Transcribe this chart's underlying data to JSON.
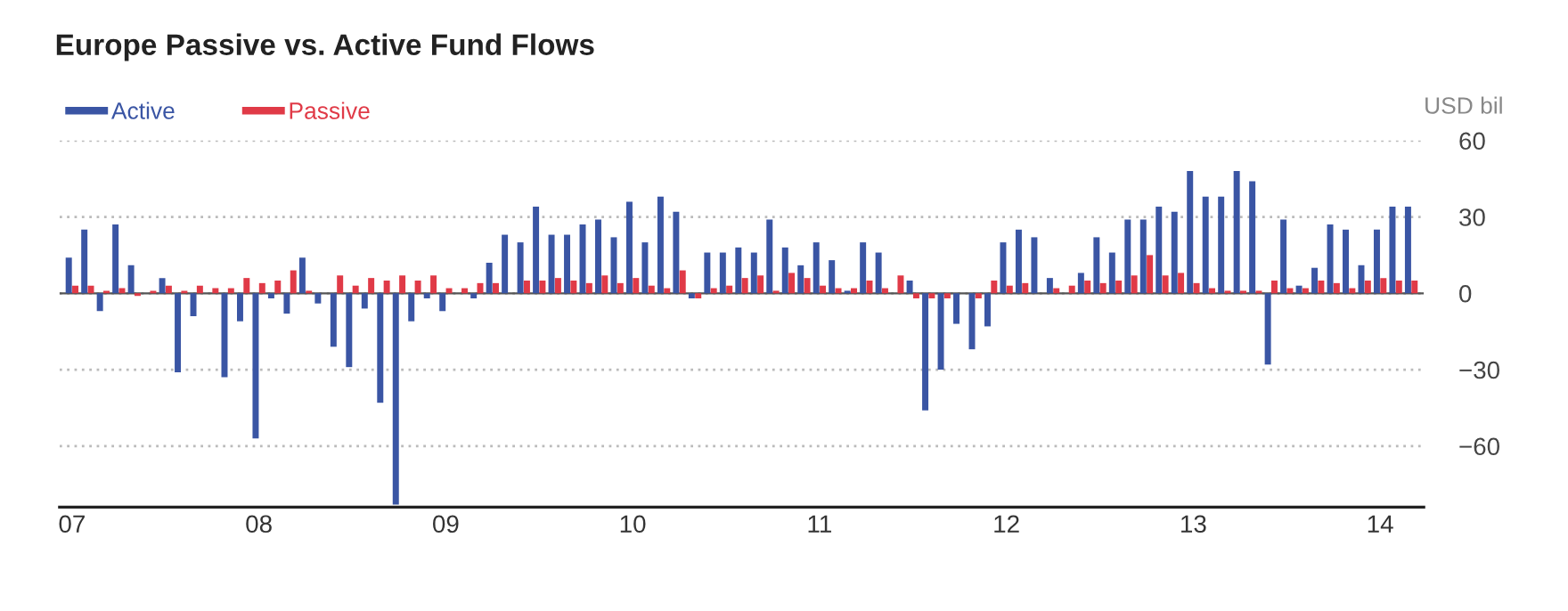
{
  "chart_data": {
    "type": "bar",
    "title": "Europe Passive vs. Active Fund Flows",
    "ylabel": "USD bil",
    "categories": [
      "07",
      null,
      null,
      null,
      null,
      null,
      null,
      null,
      null,
      null,
      null,
      null,
      "08",
      null,
      null,
      null,
      null,
      null,
      null,
      null,
      null,
      null,
      null,
      null,
      "09",
      null,
      null,
      null,
      null,
      null,
      null,
      null,
      null,
      null,
      null,
      null,
      "10",
      null,
      null,
      null,
      null,
      null,
      null,
      null,
      null,
      null,
      null,
      null,
      "11",
      null,
      null,
      null,
      null,
      null,
      null,
      null,
      null,
      null,
      null,
      null,
      "12",
      null,
      null,
      null,
      null,
      null,
      null,
      null,
      null,
      null,
      null,
      null,
      "13",
      null,
      null,
      null,
      null,
      null,
      null,
      null,
      null,
      null,
      null,
      null,
      "14",
      null,
      null
    ],
    "series": [
      {
        "name": "Active",
        "color": "#3a55a4",
        "values": [
          14,
          25,
          -7,
          27,
          11,
          0,
          6,
          -31,
          -9,
          0,
          -33,
          -11,
          -57,
          -2,
          -8,
          14,
          -4,
          -21,
          -29,
          -6,
          -43,
          -83,
          -11,
          -2,
          -7,
          0,
          -2,
          12,
          23,
          20,
          34,
          23,
          23,
          27,
          29,
          22,
          36,
          20,
          38,
          32,
          -2,
          16,
          16,
          18,
          16,
          29,
          18,
          11,
          20,
          13,
          1,
          20,
          16,
          0,
          5,
          -46,
          -30,
          -12,
          -22,
          -13,
          20,
          25,
          22,
          6,
          0,
          8,
          22,
          16,
          29,
          29,
          34,
          32,
          48,
          38,
          38,
          48,
          44,
          -28,
          29,
          3,
          10,
          27,
          25,
          11,
          25,
          34,
          34
        ]
      },
      {
        "name": "Passive",
        "color": "#e03a47",
        "values": [
          3,
          3,
          1,
          2,
          -1,
          1,
          3,
          1,
          3,
          2,
          2,
          6,
          4,
          5,
          9,
          1,
          0,
          7,
          3,
          6,
          5,
          7,
          5,
          7,
          2,
          2,
          4,
          4,
          0,
          5,
          5,
          6,
          5,
          4,
          7,
          4,
          6,
          3,
          2,
          9,
          -2,
          2,
          3,
          6,
          7,
          1,
          8,
          6,
          3,
          2,
          2,
          5,
          2,
          7,
          -2,
          -2,
          -2,
          0,
          -2,
          5,
          3,
          4,
          0,
          2,
          3,
          5,
          4,
          5,
          7,
          15,
          7,
          8,
          4,
          2,
          1,
          1,
          1,
          5,
          2,
          2,
          5,
          4,
          2,
          5,
          6,
          5,
          5
        ]
      }
    ],
    "ylim": [
      -84,
      60
    ],
    "yticks": [
      60,
      30,
      0,
      {
        "value": -30,
        "label": "−30"
      },
      {
        "value": -60,
        "label": "−60"
      }
    ],
    "ref_lines": [
      {
        "axis": "y",
        "value": 0,
        "color": "#555555"
      }
    ],
    "grid": "y",
    "legend": "top left"
  }
}
